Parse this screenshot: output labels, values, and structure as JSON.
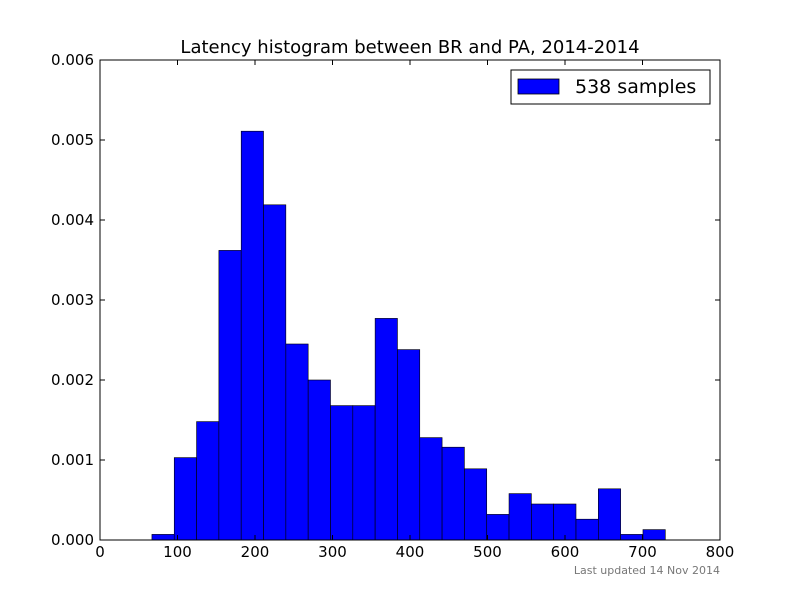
{
  "chart_data": {
    "type": "bar",
    "title": "Latency histogram between BR and PA, 2014-2014",
    "xlabel": "",
    "ylabel": "",
    "xlim": [
      0,
      800
    ],
    "ylim": [
      0,
      0.006
    ],
    "x_ticks": [
      0,
      100,
      200,
      300,
      400,
      500,
      600,
      700,
      800
    ],
    "x_tick_labels": [
      "0",
      "100",
      "200",
      "300",
      "400",
      "500",
      "600",
      "700",
      "800"
    ],
    "y_ticks": [
      0,
      0.001,
      0.002,
      0.003,
      0.004,
      0.005,
      0.006
    ],
    "y_tick_labels": [
      "0.000",
      "0.001",
      "0.002",
      "0.003",
      "0.004",
      "0.005",
      "0.006"
    ],
    "bin_edges": [
      67,
      95.8,
      124.6,
      153.4,
      182.2,
      211,
      239.8,
      268.6,
      297.4,
      326.2,
      355,
      383.8,
      412.6,
      441.4,
      470.2,
      499,
      527.8,
      556.6,
      585.4,
      614.2,
      643,
      671.8,
      700.6,
      729.4
    ],
    "series": [
      {
        "name": "538 samples",
        "values": [
          7e-05,
          0.00103,
          0.00148,
          0.00362,
          0.00511,
          0.00419,
          0.00245,
          0.002,
          0.00168,
          0.00168,
          0.00277,
          0.00238,
          0.00128,
          0.00116,
          0.00089,
          0.00032,
          0.00058,
          0.00045,
          0.00045,
          0.00026,
          0.00064,
          7e-05,
          0.00013
        ],
        "color": "#0000ff"
      }
    ],
    "legend": {
      "position": "top-right",
      "labels": [
        "538 samples"
      ]
    },
    "grid": false,
    "footnote": "Last updated 14 Nov 2014"
  }
}
